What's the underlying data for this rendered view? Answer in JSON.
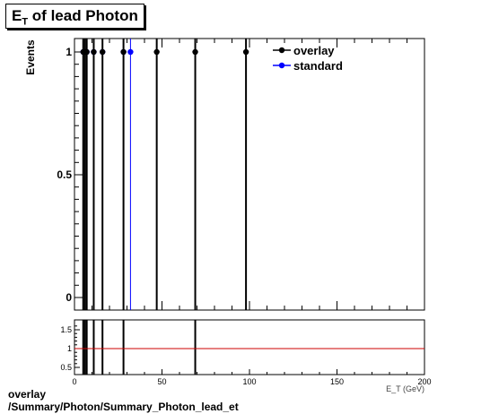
{
  "title": {
    "main": "E",
    "sub": "T",
    "rest": " of lead Photon"
  },
  "footer": {
    "line1": "overlay",
    "line2": "/Summary/Photon/Summary_Photon_lead_et"
  },
  "chart_data": [
    {
      "type": "scatter",
      "ylabel": "Events",
      "xlabel": "E_T (GeV)",
      "xlim": [
        0,
        200
      ],
      "ylim": [
        0,
        1.05
      ],
      "y_ticks": [
        0,
        0.5,
        1
      ],
      "y_tick_labels": [
        "0",
        "0.5",
        "1"
      ],
      "legend": {
        "placement": "top-right",
        "entries": [
          "overlay",
          "standard"
        ]
      },
      "series": [
        {
          "name": "overlay",
          "color": "#000000",
          "points": [
            {
              "x": 5,
              "y": 1
            },
            {
              "x": 6,
              "y": 1
            },
            {
              "x": 7,
              "y": 1
            },
            {
              "x": 11,
              "y": 1
            },
            {
              "x": 16,
              "y": 1
            },
            {
              "x": 28,
              "y": 1
            },
            {
              "x": 47,
              "y": 1
            },
            {
              "x": 69,
              "y": 1
            },
            {
              "x": 98,
              "y": 1
            }
          ]
        },
        {
          "name": "standard",
          "color": "#0000ff",
          "points": [
            {
              "x": 5,
              "y": 1
            },
            {
              "x": 6,
              "y": 1
            },
            {
              "x": 7,
              "y": 1
            },
            {
              "x": 11,
              "y": 1
            },
            {
              "x": 16,
              "y": 1
            },
            {
              "x": 28,
              "y": 1
            },
            {
              "x": 32,
              "y": 1
            }
          ]
        }
      ]
    },
    {
      "type": "line",
      "xlim": [
        0,
        200
      ],
      "ylim": [
        0.3,
        1.75
      ],
      "x_ticks": [
        0,
        50,
        100,
        150,
        200
      ],
      "x_tick_labels": [
        "0",
        "50",
        "100",
        "150",
        "200"
      ],
      "y_ticks": [
        0.5,
        1,
        1.5
      ],
      "y_tick_labels": [
        "0.5",
        "1",
        "1.5"
      ],
      "reference_line": {
        "y": 1,
        "color": "#cc0000"
      },
      "ratio_bars_x": [
        5,
        6,
        7,
        11,
        16,
        28,
        69
      ]
    }
  ]
}
